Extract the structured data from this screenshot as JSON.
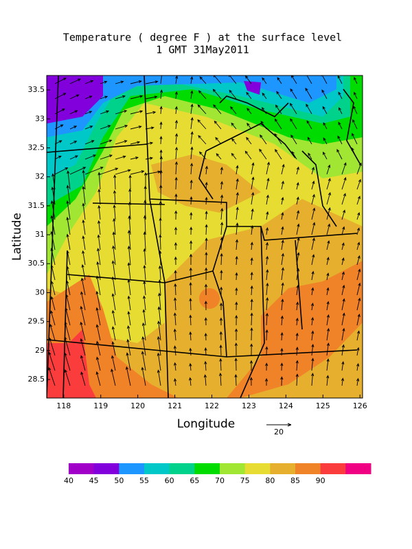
{
  "title": "Temperature ( degree F ) at the surface level",
  "subtitle": "1 GMT 31May2011",
  "x_axis": {
    "label": "Longitude",
    "lim": [
      117.54,
      126.07
    ],
    "ticks": [
      118,
      119,
      120,
      121,
      122,
      123,
      124,
      125,
      126
    ]
  },
  "y_axis": {
    "label": "Latitude",
    "lim": [
      28.18,
      33.75
    ],
    "ticks": [
      28.5,
      29,
      29.5,
      30,
      30.5,
      31,
      31.5,
      32,
      32.5,
      33,
      33.5
    ]
  },
  "colorbar": {
    "ticks": [
      40,
      45,
      50,
      55,
      60,
      65,
      70,
      75,
      80,
      85,
      90
    ],
    "colors": [
      "#a000c8",
      "#8200dc",
      "#1e96ff",
      "#00c8c8",
      "#00d28c",
      "#00dc00",
      "#a0e632",
      "#e6dc32",
      "#e6af2d",
      "#f08228",
      "#fa3c3c",
      "#f00082"
    ]
  },
  "reference_vector": {
    "label": "20"
  }
}
